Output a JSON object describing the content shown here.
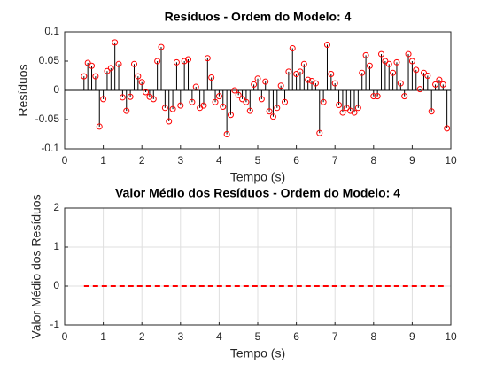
{
  "chart_data": [
    {
      "type": "stem",
      "title": "Resíduos - Ordem do Modelo: 4",
      "xlabel": "Tempo (s)",
      "ylabel": "Resíduos",
      "x": [
        0.5,
        0.6,
        0.7,
        0.8,
        0.9,
        1.0,
        1.1,
        1.2,
        1.3,
        1.4,
        1.5,
        1.6,
        1.7,
        1.8,
        1.9,
        2.0,
        2.1,
        2.2,
        2.3,
        2.4,
        2.5,
        2.6,
        2.7,
        2.8,
        2.9,
        3.0,
        3.1,
        3.2,
        3.3,
        3.4,
        3.5,
        3.6,
        3.7,
        3.8,
        3.9,
        4.0,
        4.1,
        4.2,
        4.3,
        4.4,
        4.5,
        4.6,
        4.7,
        4.8,
        4.9,
        5.0,
        5.1,
        5.2,
        5.3,
        5.4,
        5.5,
        5.6,
        5.7,
        5.8,
        5.9,
        6.0,
        6.1,
        6.2,
        6.3,
        6.4,
        6.5,
        6.6,
        6.7,
        6.8,
        6.9,
        7.0,
        7.1,
        7.2,
        7.3,
        7.4,
        7.5,
        7.6,
        7.7,
        7.8,
        7.9,
        8.0,
        8.1,
        8.2,
        8.3,
        8.4,
        8.5,
        8.6,
        8.7,
        8.8,
        8.9,
        9.0,
        9.1,
        9.2,
        9.3,
        9.4,
        9.5,
        9.6,
        9.7,
        9.8,
        9.9
      ],
      "values": [
        0.024,
        0.047,
        0.042,
        0.024,
        -0.062,
        -0.015,
        0.033,
        0.038,
        0.082,
        0.045,
        -0.012,
        -0.035,
        -0.011,
        0.045,
        0.024,
        0.014,
        -0.003,
        -0.011,
        -0.015,
        0.05,
        0.074,
        -0.03,
        -0.053,
        -0.032,
        0.048,
        -0.026,
        0.05,
        0.053,
        -0.02,
        0.006,
        -0.03,
        -0.026,
        0.055,
        0.022,
        -0.02,
        -0.01,
        -0.028,
        -0.075,
        -0.042,
        0.0,
        -0.008,
        -0.015,
        -0.02,
        -0.035,
        0.01,
        0.02,
        -0.015,
        0.015,
        -0.036,
        -0.045,
        -0.03,
        0.008,
        -0.02,
        0.032,
        0.072,
        0.028,
        0.032,
        0.045,
        0.018,
        0.016,
        0.012,
        -0.073,
        -0.02,
        0.078,
        0.028,
        0.012,
        -0.025,
        -0.038,
        -0.03,
        -0.035,
        -0.038,
        -0.03,
        0.03,
        0.06,
        0.042,
        -0.01,
        -0.01,
        0.062,
        0.05,
        0.045,
        0.03,
        0.048,
        0.012,
        -0.01,
        0.062,
        0.05,
        0.035,
        0.002,
        0.03,
        0.025,
        -0.036,
        0.01,
        0.018,
        0.01,
        -0.065
      ],
      "color": "#ff0000",
      "stem_color": "#000000",
      "xlim": [
        0,
        10
      ],
      "xticks": [
        0,
        1,
        2,
        3,
        4,
        5,
        6,
        7,
        8,
        9,
        10
      ],
      "ylim": [
        -0.1,
        0.1
      ],
      "yticks": [
        -0.1,
        -0.05,
        0,
        0.05,
        0.1
      ],
      "grid": false
    },
    {
      "type": "line",
      "title": "Valor Médio dos Resíduos - Ordem do Modelo: 4",
      "xlabel": "Tempo (s)",
      "ylabel": "Valor Médio dos Resíduos",
      "x": [
        0.5,
        9.9
      ],
      "values": [
        0,
        0
      ],
      "color": "#ff0000",
      "dashed": true,
      "xlim": [
        0,
        10
      ],
      "xticks": [
        0,
        1,
        2,
        3,
        4,
        5,
        6,
        7,
        8,
        9,
        10
      ],
      "ylim": [
        -1,
        2
      ],
      "yticks": [
        -1,
        0,
        1,
        2
      ],
      "grid": true
    }
  ]
}
